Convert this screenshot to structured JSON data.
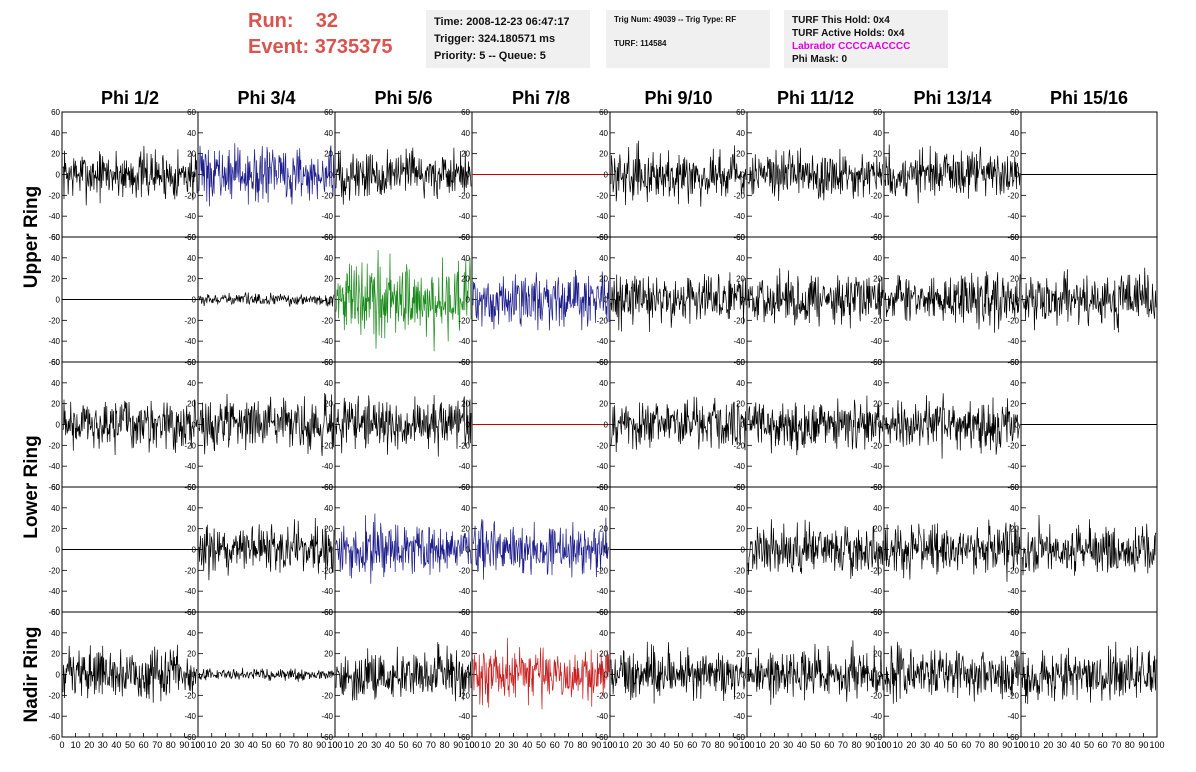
{
  "header": {
    "run_label": "Run:",
    "run_value": "32",
    "event_label": "Event:",
    "event_value": "3735375",
    "time": "Time: 2008-12-23 06:47:17",
    "trigger": "Trigger: 324.180571 ms",
    "priority": "Priority: 5 -- Queue: 5",
    "trig_num": "Trig Num: 49039 -- Trig Type: RF",
    "turf": "TURF: 114584",
    "turf_this_hold": "TURF This Hold: 0x4",
    "turf_active_holds": "TURF Active Holds: 0x4",
    "labrador": "Labrador CCCCAACCCC",
    "phi_mask": "Phi Mask: 0"
  },
  "colors": {
    "red_text": "#d9534f",
    "labrador": "#e000e0",
    "trace_black": "#000000",
    "trace_blue": "#1c1c8c",
    "trace_green": "#1a8a1a",
    "trace_red": "#c81e1e",
    "flat_red": "#cc0000",
    "panel_bg": "#f0f0f0"
  },
  "chart_data": {
    "type": "line",
    "columns": [
      "Phi 1/2",
      "Phi 3/4",
      "Phi 5/6",
      "Phi 7/8",
      "Phi 9/10",
      "Phi 11/12",
      "Phi 13/14",
      "Phi 15/16"
    ],
    "rows": [
      "Upper Ring",
      "Upper Ring",
      "Lower Ring",
      "Lower Ring",
      "Nadir Ring"
    ],
    "ring_labels": [
      "Upper Ring",
      "Lower Ring",
      "Nadir Ring"
    ],
    "xlim": [
      0,
      100
    ],
    "ylim": [
      -60,
      60
    ],
    "x_ticks": [
      0,
      10,
      20,
      30,
      40,
      50,
      60,
      70,
      80,
      90,
      100
    ],
    "y_ticks": [
      -60,
      -40,
      -20,
      0,
      20,
      40,
      60
    ],
    "traces": [
      [
        "noise",
        "noise-blue",
        "noise",
        "flat-red",
        "noise",
        "noise",
        "noise",
        "flat"
      ],
      [
        "flat",
        "small",
        "noise-green",
        "noise-blue",
        "noise",
        "noise",
        "noise",
        "noise"
      ],
      [
        "noise",
        "noise",
        "noise",
        "flat-red",
        "noise",
        "noise",
        "noise",
        "flat"
      ],
      [
        "flat",
        "noise",
        "noise-blue",
        "noise-blue",
        "flat",
        "noise",
        "noise",
        "noise"
      ],
      [
        "noise",
        "small",
        "noise",
        "noise-red",
        "noise",
        "noise",
        "noise",
        "noise"
      ]
    ]
  }
}
